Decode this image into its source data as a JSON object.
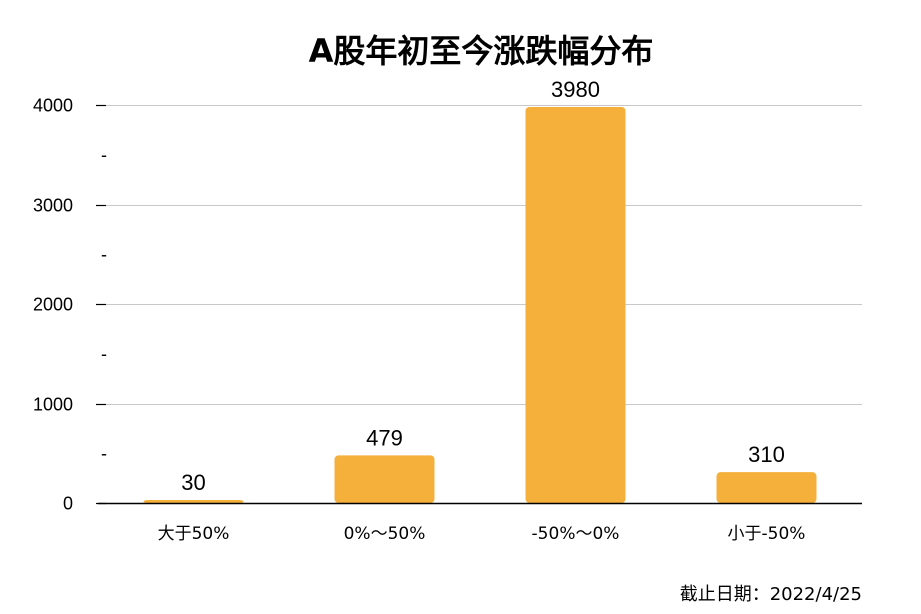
{
  "chart_data": {
    "type": "bar",
    "title": "A股年初至今涨跌幅分布",
    "categories": [
      "大于50%",
      "0%～50%",
      "-50%～0%",
      "小于-50%"
    ],
    "values": [
      30,
      479,
      3980,
      310
    ],
    "value_labels": [
      "30",
      "479",
      "3980",
      "310"
    ],
    "xlabel": "",
    "ylabel": "",
    "ylim": [
      0,
      4000
    ],
    "yticks": [
      0,
      1000,
      2000,
      3000,
      4000
    ],
    "ytick_labels": [
      "0",
      "1000",
      "2000",
      "3000",
      "4000"
    ],
    "minor_tick_mark": "-",
    "grid": true,
    "bar_color": "#F4B03B"
  },
  "note": "截止日期：2022/4/25"
}
